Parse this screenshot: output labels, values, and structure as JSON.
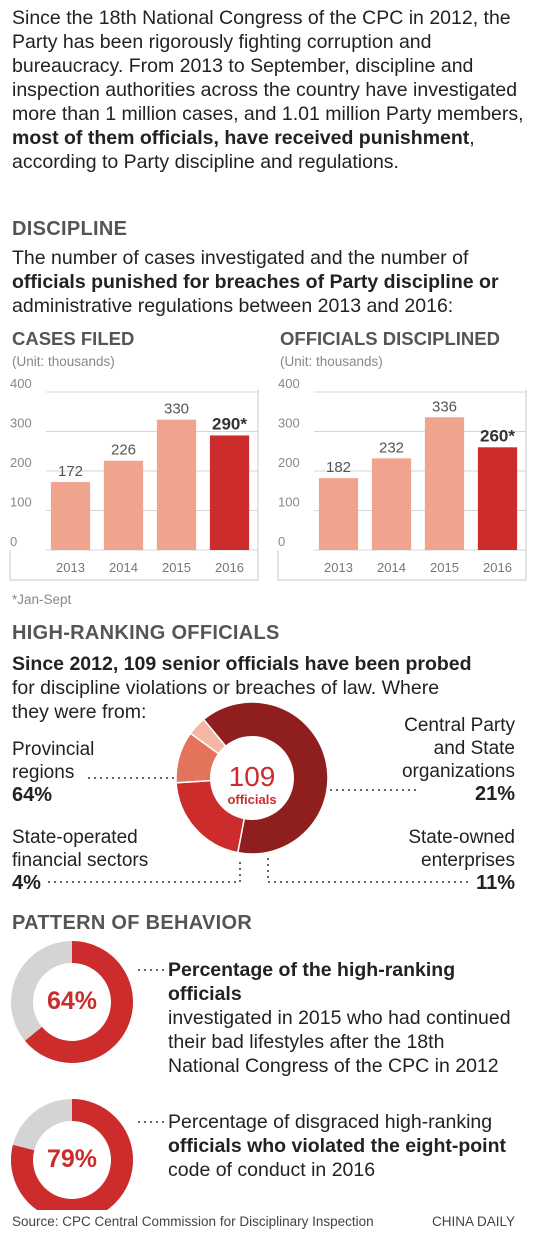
{
  "intro": {
    "p1": "Since the 18th National Congress of the CPC in 2012, the Party has been rigorously fighting corruption and bureaucracy. From 2013 to September, discipline and inspection authorities across the country have investigated more than 1 million cases, and 1.01 million Party members,",
    "bold": "most of them officials, have received punishment",
    "p2": ", according to Party discipline and regulations."
  },
  "discipline": {
    "heading": "DISCIPLINE",
    "desc_a": "The number of cases investigated and the number of",
    "desc_bold": "officials punished for breaches of Party discipline or",
    "desc_b": "administrative regulations between 2013 and 2016:"
  },
  "chart_data": [
    {
      "type": "bar",
      "title": "CASES FILED",
      "subtitle": "(Unit: thousands)",
      "categories": [
        "2013",
        "2014",
        "2015",
        "2016"
      ],
      "values": [
        172,
        226,
        330,
        290
      ],
      "value_labels": [
        "172",
        "226",
        "330",
        "290*"
      ],
      "yticks": [
        "400",
        "300",
        "200",
        "100",
        "0"
      ],
      "ylim": [
        0,
        400
      ],
      "colors": [
        "#f0a38d",
        "#f0a38d",
        "#f0a38d",
        "#cc2c2c"
      ],
      "footnote": "*Jan-Sept"
    },
    {
      "type": "bar",
      "title": "OFFICIALS DISCIPLINED",
      "subtitle": "(Unit: thousands)",
      "categories": [
        "2013",
        "2014",
        "2015",
        "2016"
      ],
      "values": [
        182,
        232,
        336,
        260
      ],
      "value_labels": [
        "182",
        "232",
        "336",
        "260*"
      ],
      "yticks": [
        "400",
        "300",
        "200",
        "100",
        "0"
      ],
      "ylim": [
        0,
        400
      ],
      "colors": [
        "#f0a38d",
        "#f0a38d",
        "#f0a38d",
        "#cc2c2c"
      ]
    },
    {
      "type": "pie",
      "title": "HIGH-RANKING OFFICIALS",
      "center_number": "109",
      "center_label": "officials",
      "slices": [
        {
          "label_lines": [
            "Provincial",
            "regions"
          ],
          "pct_label": "64%",
          "value": 64,
          "color": "#8f1f1f"
        },
        {
          "label_lines": [
            "Central Party",
            "and State",
            "organizations"
          ],
          "pct_label": "21%",
          "value": 21,
          "color": "#cc2c2c"
        },
        {
          "label_lines": [
            "State-owned",
            "enterprises"
          ],
          "pct_label": "11%",
          "value": 11,
          "color": "#e4735c"
        },
        {
          "label_lines": [
            "State-operated",
            "financial sectors"
          ],
          "pct_label": "4%",
          "value": 4,
          "color": "#f4b7a6"
        }
      ]
    },
    {
      "type": "pie",
      "title": "PATTERN OF BEHAVIOR",
      "donuts": [
        {
          "pct_label": "64%",
          "value": 64
        },
        {
          "pct_label": "79%",
          "value": 79
        }
      ],
      "colors": {
        "fill": "#cc2c2c",
        "rest": "#d4d4d4"
      }
    }
  ],
  "high": {
    "heading": "HIGH-RANKING OFFICIALS",
    "desc_bold": "Since 2012, 109 senior officials have been probed",
    "desc_a": "for discipline violations or breaches of law. Where",
    "desc_b": "they were from:"
  },
  "pattern": {
    "heading": "PATTERN OF BEHAVIOR",
    "d1_bold": "Percentage of the high-ranking officials",
    "d1_a": "investigated in 2015 who had continued",
    "d1_b": "their bad lifestyles after the 18th",
    "d1_c": "National Congress of the CPC in 2012",
    "d2_a": "Percentage of disgraced high-ranking",
    "d2_bold": "officials who violated the eight-point",
    "d2_b": "code of conduct in 2016"
  },
  "footer": {
    "source": "Source: CPC Central Commission for Disciplinary Inspection",
    "brand": "CHINA DAILY"
  }
}
